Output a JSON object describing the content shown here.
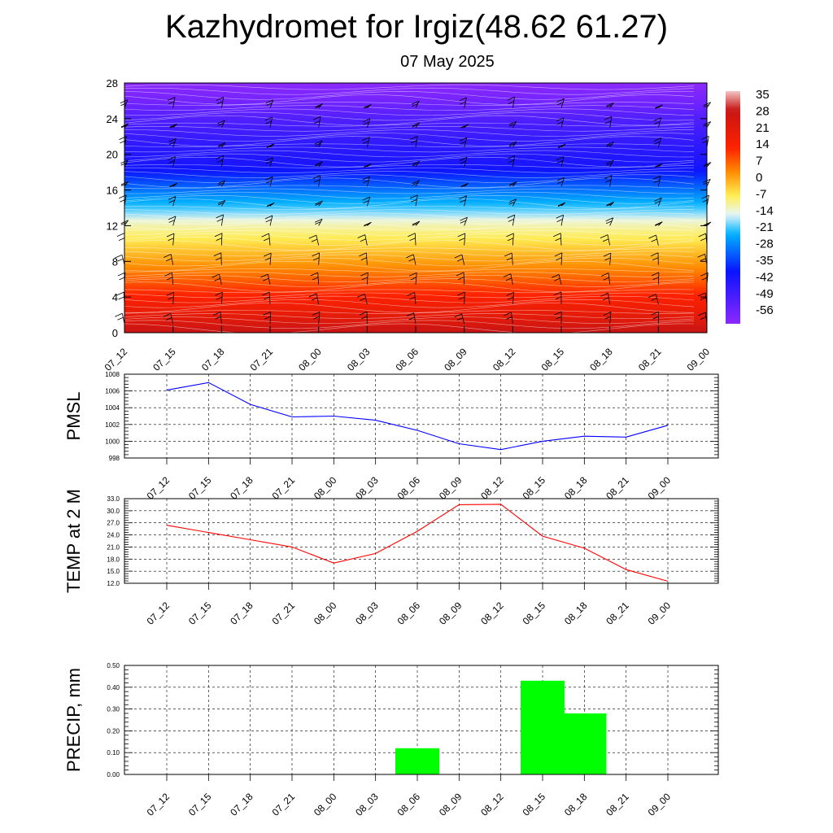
{
  "title": "Kazhydromet for Irgiz(48.62 61.27)",
  "subtitle": "07 May 2025",
  "time_labels": [
    "07_12",
    "07_15",
    "07_18",
    "07_21",
    "08_00",
    "08_03",
    "08_06",
    "08_09",
    "08_12",
    "08_15",
    "08_18",
    "08_21",
    "09_00"
  ],
  "chart_data": [
    {
      "type": "heatmap",
      "name": "",
      "x": [
        "07_12",
        "07_15",
        "07_18",
        "07_21",
        "08_00",
        "08_03",
        "08_06",
        "08_09",
        "08_12",
        "08_15",
        "08_18",
        "08_21",
        "09_00"
      ],
      "y_ticks": [
        0,
        4,
        8,
        12,
        16,
        20,
        24,
        28
      ],
      "ylim": [
        0,
        28
      ],
      "colorbar": {
        "labels": [
          "35",
          "28",
          "21",
          "14",
          "7",
          "0",
          "-7",
          "-14",
          "-21",
          "-28",
          "-35",
          "-42",
          "-49",
          "-56"
        ],
        "range": [
          -60,
          38
        ],
        "stops": [
          {
            "value": 38,
            "color": "#f2c4c4"
          },
          {
            "value": 30,
            "color": "#c81414"
          },
          {
            "value": 14,
            "color": "#ff2200"
          },
          {
            "value": 4,
            "color": "#ff8c00"
          },
          {
            "value": -6,
            "color": "#ffee55"
          },
          {
            "value": -14,
            "color": "#e8f6f8"
          },
          {
            "value": -22,
            "color": "#00b4ff"
          },
          {
            "value": -38,
            "color": "#0a14ff"
          },
          {
            "value": -60,
            "color": "#8c28ff"
          }
        ]
      },
      "profile": [
        {
          "level": 0,
          "value": 30
        },
        {
          "level": 1.5,
          "value": 23
        },
        {
          "level": 4,
          "value": 15
        },
        {
          "level": 6,
          "value": 8
        },
        {
          "level": 8,
          "value": 2
        },
        {
          "level": 10,
          "value": -4
        },
        {
          "level": 12.5,
          "value": -12
        },
        {
          "level": 13.5,
          "value": -18
        },
        {
          "level": 15,
          "value": -24
        },
        {
          "level": 17,
          "value": -33
        },
        {
          "level": 18.5,
          "value": -40
        },
        {
          "level": 21,
          "value": -44
        },
        {
          "level": 24,
          "value": -50
        },
        {
          "level": 26,
          "value": -56
        },
        {
          "level": 28,
          "value": -60
        }
      ],
      "colors": {
        "barb": "#000000",
        "contour": "#ffffff"
      }
    },
    {
      "type": "line",
      "ylabel": "PMSL",
      "x": [
        "07_12",
        "07_15",
        "07_18",
        "07_21",
        "08_00",
        "08_03",
        "08_06",
        "08_09",
        "08_12",
        "08_15",
        "08_18",
        "08_21",
        "09_00"
      ],
      "y_ticks": [
        "1008",
        "1006",
        "1004",
        "1002",
        "1000",
        "998"
      ],
      "ylim": [
        998,
        1008
      ],
      "series": [
        {
          "color": "#0000ff",
          "values": [
            1006.1,
            1007.0,
            1004.4,
            1002.9,
            1003.0,
            1002.5,
            1001.3,
            999.7,
            999.0,
            1000.0,
            1000.6,
            1000.5,
            1001.9
          ]
        }
      ],
      "grid": true
    },
    {
      "type": "line",
      "ylabel": "TEMP at 2 M",
      "x": [
        "07_12",
        "07_15",
        "07_18",
        "07_21",
        "08_00",
        "08_03",
        "08_06",
        "08_09",
        "08_12",
        "08_15",
        "08_18",
        "08_21",
        "09_00"
      ],
      "y_ticks": [
        "33.0",
        "30.0",
        "27.0",
        "24.0",
        "21.0",
        "18.0",
        "15.0",
        "12.0"
      ],
      "ylim": [
        12,
        33
      ],
      "series": [
        {
          "color": "#ff0000",
          "values": [
            26.4,
            24.6,
            22.8,
            21.0,
            17.0,
            19.4,
            24.9,
            31.5,
            31.6,
            23.7,
            20.7,
            15.4,
            12.5
          ]
        }
      ],
      "grid": true
    },
    {
      "type": "bar",
      "ylabel": "PRECIP, mm",
      "categories": [
        "07_12",
        "07_15",
        "07_18",
        "07_21",
        "08_00",
        "08_03",
        "08_06",
        "08_09",
        "08_12",
        "08_15",
        "08_18",
        "08_21",
        "09_00"
      ],
      "y_ticks": [
        "0.50",
        "0.40",
        "0.30",
        "0.20",
        "0.10",
        "0.00"
      ],
      "ylim": [
        0,
        0.5
      ],
      "values": [
        0,
        0,
        0,
        0,
        0,
        0,
        0.12,
        0,
        0,
        0.43,
        0.28,
        0,
        0
      ],
      "color": "#00ff00",
      "grid": true
    }
  ]
}
